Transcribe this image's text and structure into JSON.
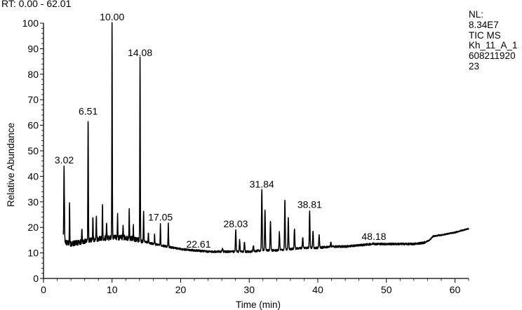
{
  "header": {
    "rt_range": "RT: 0.00 - 62.01"
  },
  "info": {
    "nl_label": "NL:",
    "nl_value": "8.34E7",
    "trace": "TIC  MS",
    "sample": "Kh_11_A_1",
    "id_line1": "608211920",
    "id_line2": "23"
  },
  "chart_data": {
    "type": "line",
    "title": "",
    "xlabel": "Time (min)",
    "ylabel": "Relative Abundance",
    "xlim": [
      0,
      62
    ],
    "ylim": [
      0,
      100
    ],
    "x_ticks": [
      0,
      10,
      20,
      30,
      40,
      50,
      60
    ],
    "y_ticks": [
      0,
      10,
      20,
      30,
      40,
      50,
      60,
      70,
      80,
      90,
      100
    ],
    "baseline": [
      [
        2.9,
        16
      ],
      [
        3.3,
        14
      ],
      [
        4.0,
        13.5
      ],
      [
        6.0,
        14.5
      ],
      [
        8.0,
        15.5
      ],
      [
        10.0,
        16
      ],
      [
        12.0,
        16
      ],
      [
        14.0,
        15
      ],
      [
        16.0,
        13.5
      ],
      [
        18.0,
        12.5
      ],
      [
        20.0,
        11.5
      ],
      [
        22.0,
        11
      ],
      [
        24.0,
        10.5
      ],
      [
        26.0,
        10.5
      ],
      [
        28.0,
        10.5
      ],
      [
        30.0,
        10.5
      ],
      [
        32.0,
        11
      ],
      [
        34.0,
        11
      ],
      [
        36.0,
        11.5
      ],
      [
        38.0,
        12
      ],
      [
        40.0,
        12
      ],
      [
        42.0,
        12.5
      ],
      [
        44.0,
        12.5
      ],
      [
        46.0,
        13
      ],
      [
        48.0,
        13.5
      ],
      [
        50.0,
        13.5
      ],
      [
        52.0,
        13.5
      ],
      [
        54.0,
        13.5
      ],
      [
        55.5,
        14
      ],
      [
        56.3,
        15
      ],
      [
        56.8,
        16.5
      ],
      [
        58.0,
        17
      ],
      [
        59.0,
        17.5
      ],
      [
        60.0,
        18
      ],
      [
        61.0,
        18.8
      ],
      [
        62.0,
        19.5
      ]
    ],
    "peaks": [
      {
        "rt": 3.02,
        "abundance": 44,
        "label": "3.02"
      },
      {
        "rt": 3.8,
        "abundance": 29
      },
      {
        "rt": 5.6,
        "abundance": 19
      },
      {
        "rt": 6.51,
        "abundance": 63,
        "label": "6.51"
      },
      {
        "rt": 7.2,
        "abundance": 24
      },
      {
        "rt": 7.7,
        "abundance": 25
      },
      {
        "rt": 8.6,
        "abundance": 29.5
      },
      {
        "rt": 9.2,
        "abundance": 22
      },
      {
        "rt": 10.0,
        "abundance": 100,
        "label": "10.00"
      },
      {
        "rt": 10.8,
        "abundance": 25
      },
      {
        "rt": 11.6,
        "abundance": 20
      },
      {
        "rt": 12.5,
        "abundance": 26.5
      },
      {
        "rt": 13.1,
        "abundance": 21
      },
      {
        "rt": 14.08,
        "abundance": 86,
        "label": "14.08"
      },
      {
        "rt": 14.6,
        "abundance": 26
      },
      {
        "rt": 15.3,
        "abundance": 18
      },
      {
        "rt": 16.2,
        "abundance": 17
      },
      {
        "rt": 17.05,
        "abundance": 21.5,
        "label": "17.05"
      },
      {
        "rt": 18.2,
        "abundance": 21.5
      },
      {
        "rt": 22.61,
        "abundance": 11,
        "label": "22.61"
      },
      {
        "rt": 26.1,
        "abundance": 12
      },
      {
        "rt": 28.03,
        "abundance": 19,
        "label": "28.03"
      },
      {
        "rt": 28.6,
        "abundance": 15
      },
      {
        "rt": 29.3,
        "abundance": 14
      },
      {
        "rt": 30.6,
        "abundance": 13
      },
      {
        "rt": 31.84,
        "abundance": 34.5,
        "label": "31.84"
      },
      {
        "rt": 32.3,
        "abundance": 27
      },
      {
        "rt": 33.1,
        "abundance": 22.5
      },
      {
        "rt": 34.4,
        "abundance": 18
      },
      {
        "rt": 35.2,
        "abundance": 31
      },
      {
        "rt": 35.7,
        "abundance": 23.5
      },
      {
        "rt": 36.6,
        "abundance": 19.5
      },
      {
        "rt": 37.8,
        "abundance": 16
      },
      {
        "rt": 38.81,
        "abundance": 26.5,
        "label": "38.81"
      },
      {
        "rt": 39.3,
        "abundance": 18.5
      },
      {
        "rt": 40.2,
        "abundance": 17
      },
      {
        "rt": 41.9,
        "abundance": 14
      },
      {
        "rt": 48.18,
        "abundance": 14,
        "label": "48.18"
      }
    ],
    "grid": false,
    "legend": "none"
  },
  "colors": {
    "trace": "#000000",
    "axis": "#000000",
    "background": "#ffffff"
  }
}
